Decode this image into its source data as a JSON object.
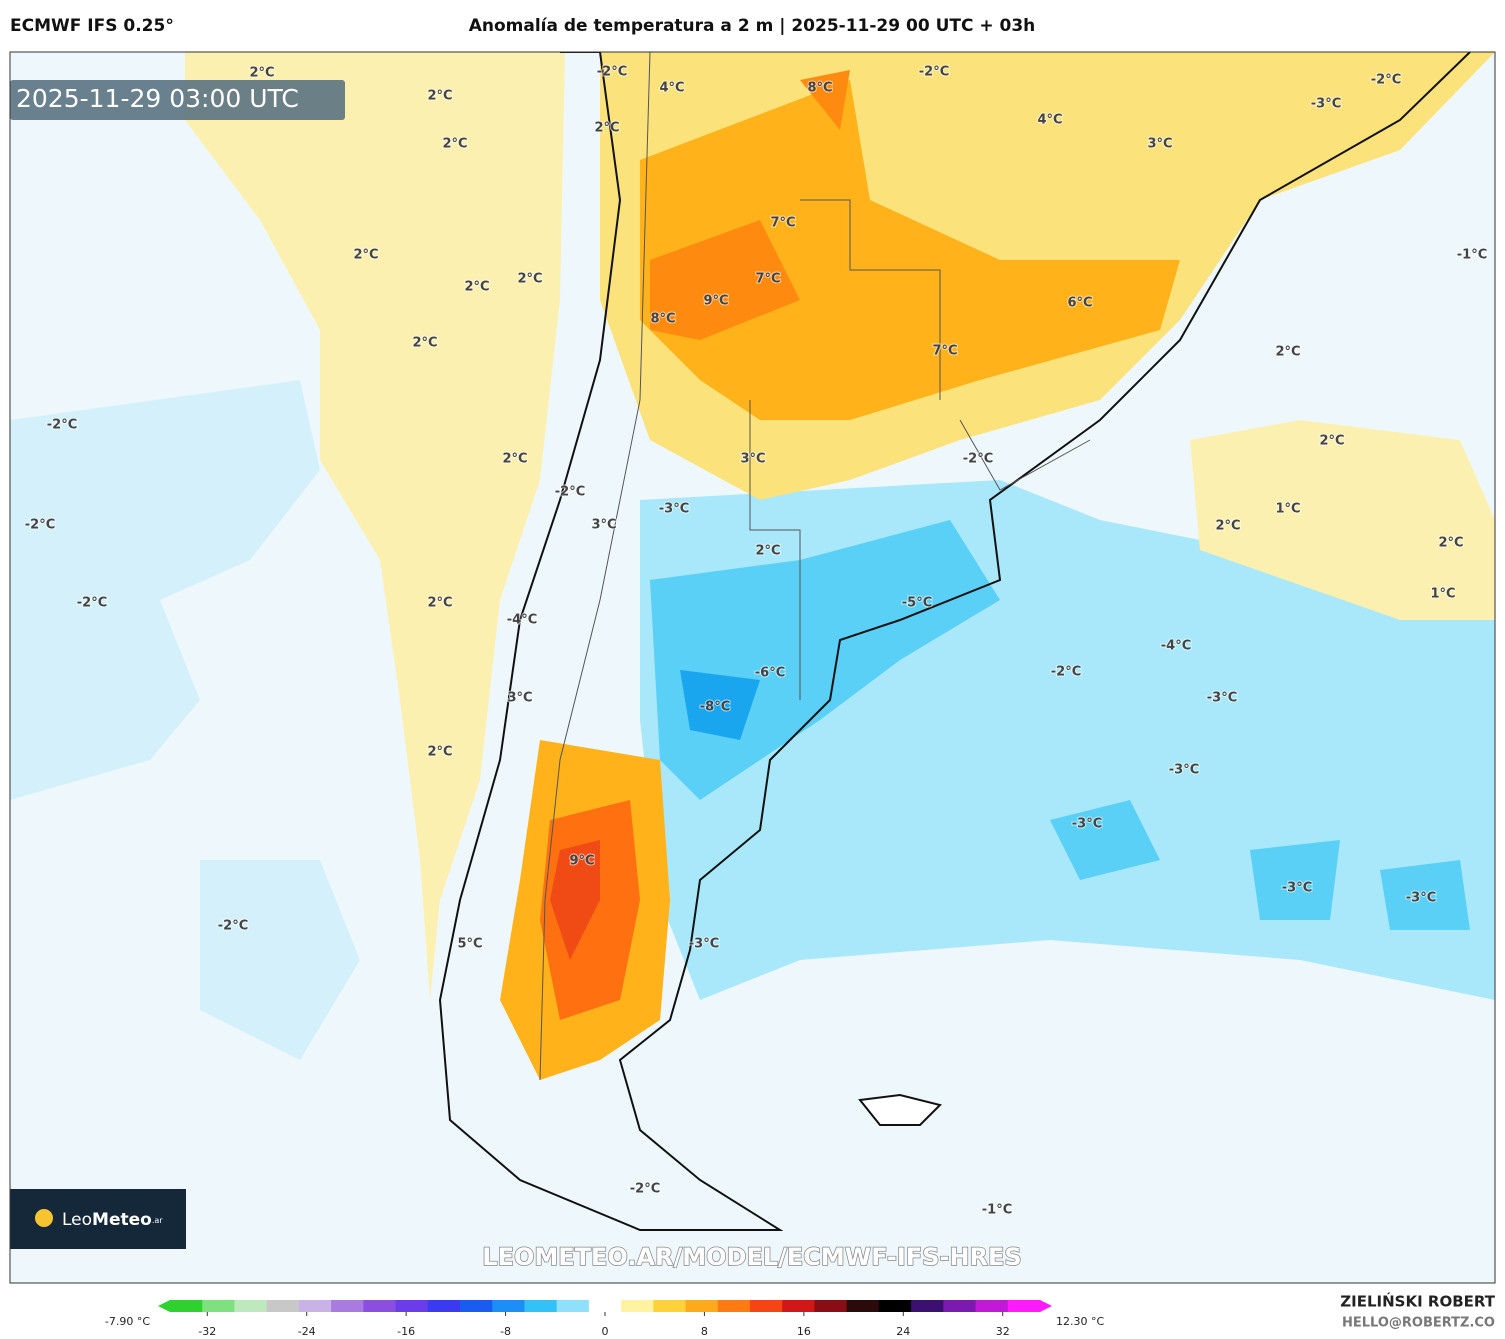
{
  "header": {
    "model": "ECMWF IFS 0.25°",
    "title": "Anomalía de temperatura a 2 m | 2025-11-29 00 UTC + 03h"
  },
  "map": {
    "timestamp": "2025-11-29 03:00 UTC",
    "watermark": "LEOMETEO.AR/MODEL/ECMWF-IFS-HRES",
    "logo": {
      "part1": "Leo",
      "part2": "Meteo",
      "suffix": ".ar"
    },
    "labels": [
      "2°C",
      "2°C",
      "2°C",
      "2°C",
      "2°C",
      "2°C",
      "2°C",
      "-2°C",
      "2°C",
      "-2°C",
      "-2°C",
      "2°C",
      "2°C",
      "-2°C",
      "-2°C",
      "4°C",
      "2°C",
      "8°C",
      "-2°C",
      "4°C",
      "3°C",
      "-2°C",
      "-3°C",
      "-1°C",
      "7°C",
      "7°C",
      "9°C",
      "8°C",
      "6°C",
      "7°C",
      "2°C",
      "2°C",
      "-2°C",
      "3°C",
      "-2°C",
      "-3°C",
      "3°C",
      "2°C",
      "1°C",
      "2°C",
      "2°C",
      "1°C",
      "-5°C",
      "-4°C",
      "-4°C",
      "-6°C",
      "-2°C",
      "3°C",
      "-8°C",
      "-3°C",
      "-3°C",
      "-3°C",
      "9°C",
      "-3°C",
      "-3°C",
      "5°C",
      "-3°C",
      "-2°C",
      "-1°C"
    ]
  },
  "colorbar": {
    "min_label": "-7.90 °C",
    "max_label": "12.30 °C",
    "lim": [
      -35,
      35
    ],
    "ticks": [
      -32,
      -24,
      -16,
      -8,
      0,
      8,
      16,
      24,
      32
    ],
    "colors": [
      "#2fd12f",
      "#7fe07f",
      "#bfe8bf",
      "#c8c8c8",
      "#c9b3e6",
      "#a77be0",
      "#8a4fe0",
      "#6a3de8",
      "#3a3af0",
      "#1a5cf0",
      "#1b8ff5",
      "#33c2f7",
      "#8fe0fa",
      "#ffffff",
      "#fff2a0",
      "#ffd23a",
      "#ffaa1a",
      "#ff7a10",
      "#f54515",
      "#d01818",
      "#8a0c14",
      "#2a0a0a",
      "#000000",
      "#3a1070",
      "#7a1ab0",
      "#c01ad8",
      "#ff1aff"
    ]
  },
  "footer": {
    "author": "ZIELIŃSKI ROBERT",
    "email": "HELLO@ROBERTZ.CO"
  }
}
